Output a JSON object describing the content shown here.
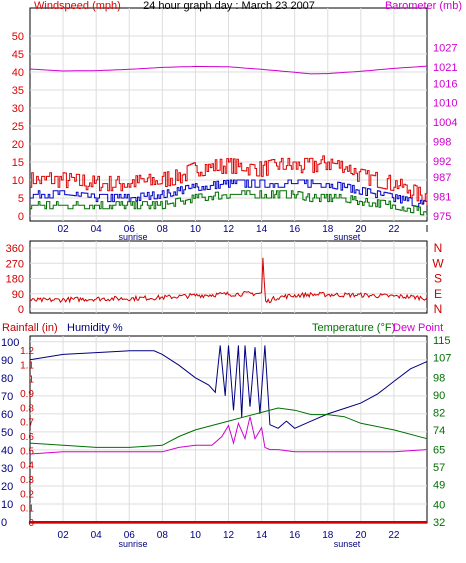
{
  "colors": {
    "wind": "#e00000",
    "wind_avg": "#0000c8",
    "wind_low": "#007000",
    "baro": "#d000d0",
    "dir": "#d00000",
    "humidity": "#000080",
    "temperature": "#007000",
    "dewpoint": "#d000d0",
    "rain": "#d00000",
    "rain_label": "#c00000",
    "humidity_label": "#000080",
    "temp_label": "#007000",
    "grid": "#dddddd",
    "axis": "#000000"
  },
  "chart_data": [
    {
      "type": "line",
      "title": "24 hour graph day : March 23 2007",
      "left_axis_label": "Windspeed (mph)",
      "right_axis_label": "Barometer (mb)",
      "x_ticks": [
        "02",
        "04",
        "06",
        "08",
        "10",
        "12",
        "14",
        "16",
        "18",
        "20",
        "22"
      ],
      "x_tick_hours": [
        2,
        4,
        6,
        8,
        10,
        12,
        14,
        16,
        18,
        20,
        22
      ],
      "x_extra_label": "I",
      "x_range_hours": [
        0,
        24
      ],
      "sunrise_label": "sunrise",
      "sunset_label": "sunset",
      "sunrise_hour": 6.3,
      "sunset_hour": 18.3,
      "left_ticks": [
        "50",
        "45",
        "40",
        "35",
        "30",
        "25",
        "20",
        "15",
        "10",
        "5",
        "0"
      ],
      "left_range": [
        0,
        50
      ],
      "right_ticks": [
        "1027",
        "1021",
        "1016",
        "1010",
        "1004",
        "998",
        "992",
        "987",
        "981",
        "975"
      ],
      "right_range": [
        975,
        1030.6
      ],
      "grid": true,
      "series": [
        {
          "name": "Barometer (mb)",
          "axis": "right",
          "x": [
            0,
            2,
            4,
            6,
            8,
            10,
            12,
            14,
            16,
            17,
            18,
            20,
            22,
            24
          ],
          "values": [
            1020.4,
            1019.8,
            1019.9,
            1020.3,
            1020.9,
            1021.2,
            1021.1,
            1020.3,
            1019.4,
            1018.9,
            1019.0,
            1019.7,
            1020.6,
            1021.3
          ]
        },
        {
          "name": "",
          "axis": "left",
          "x": [
            0,
            2,
            4,
            6,
            8,
            9,
            10,
            12,
            14,
            15,
            16,
            17,
            18,
            19,
            20,
            22,
            23,
            24
          ],
          "values": [
            10,
            10,
            9,
            9,
            10,
            11,
            13,
            14,
            13,
            14,
            14,
            14,
            15,
            14,
            11,
            9,
            7,
            5
          ]
        },
        {
          "name": "",
          "axis": "left",
          "x": [
            0,
            2,
            4,
            6,
            8,
            9,
            10,
            12,
            14,
            15,
            16,
            17,
            18,
            19,
            20,
            22,
            23,
            24
          ],
          "values": [
            6,
            6,
            5,
            5,
            6,
            7,
            8,
            9,
            9,
            9,
            9,
            9,
            9,
            8,
            7,
            5,
            4,
            3
          ]
        },
        {
          "name": "",
          "axis": "left",
          "x": [
            0,
            2,
            4,
            6,
            8,
            9,
            10,
            12,
            14,
            15,
            16,
            17,
            18,
            19,
            20,
            22,
            23,
            24
          ],
          "values": [
            3,
            3,
            3,
            3,
            3,
            4,
            5,
            6,
            6,
            6,
            6,
            5,
            5,
            5,
            4,
            3,
            2,
            1
          ]
        }
      ]
    },
    {
      "type": "line",
      "right_axis_letters": [
        "N",
        "W",
        "S",
        "E",
        "N"
      ],
      "left_ticks": [
        "360",
        "270",
        "180",
        "90",
        "0"
      ],
      "left_range": [
        0,
        360
      ],
      "x_tick_hours": [
        2,
        4,
        6,
        8,
        10,
        12,
        14,
        16,
        18,
        20,
        22
      ],
      "x_range_hours": [
        0,
        24
      ],
      "grid": true,
      "series": [
        {
          "name": "",
          "axis": "left",
          "x": [
            0,
            2,
            4,
            6,
            8,
            10,
            12,
            13,
            14,
            14.1,
            14.2,
            15,
            16,
            17,
            18,
            20,
            22,
            23,
            24
          ],
          "values": [
            50,
            55,
            60,
            62,
            68,
            80,
            88,
            90,
            92,
            355,
            40,
            70,
            80,
            85,
            85,
            82,
            75,
            72,
            65
          ]
        }
      ]
    },
    {
      "type": "line",
      "rain_axis_label": "Rainfall (in)",
      "humidity_axis_label": "Humidity %",
      "temperature_label": "Temperature (°F)",
      "dewpoint_label": "Dew Point",
      "x_ticks": [
        "02",
        "04",
        "06",
        "08",
        "10",
        "12",
        "14",
        "16",
        "18",
        "20",
        "22"
      ],
      "x_tick_hours": [
        2,
        4,
        6,
        8,
        10,
        12,
        14,
        16,
        18,
        20,
        22
      ],
      "x_range_hours": [
        0,
        24
      ],
      "sunrise_label": "sunrise",
      "sunset_label": "sunset",
      "sunrise_hour": 6.3,
      "sunset_hour": 18.3,
      "rain_ticks": [
        "1.2",
        "1.1",
        "1",
        "0.9",
        "0.8",
        "0.7",
        "0.6",
        "0.5",
        "0.4",
        "0.3",
        "0.2",
        "0.1",
        "0"
      ],
      "rain_range": [
        0,
        1.27
      ],
      "humidity_ticks": [
        "100",
        "90",
        "80",
        "70",
        "60",
        "50",
        "40",
        "30",
        "20",
        "10",
        "0"
      ],
      "humidity_range": [
        0,
        101
      ],
      "temp_ticks": [
        "115",
        "107",
        "98",
        "90",
        "82",
        "74",
        "65",
        "57",
        "49",
        "40",
        "32"
      ],
      "temp_range": [
        32,
        115
      ],
      "grid": true,
      "series": [
        {
          "name": "Humidity %",
          "axis": "humidity",
          "x": [
            0,
            2,
            4,
            6,
            7.5,
            8,
            9,
            10,
            10.8,
            11.2,
            11.5,
            11.8,
            12,
            12.3,
            12.6,
            12.8,
            13,
            13.3,
            13.6,
            13.9,
            14.2,
            14.5,
            15,
            15.5,
            16,
            17,
            18,
            19,
            20,
            21,
            22,
            23,
            24
          ],
          "values": [
            90,
            93,
            94,
            95,
            95,
            93,
            87,
            80,
            76,
            72,
            98,
            70,
            98,
            62,
            98,
            58,
            98,
            64,
            97,
            60,
            98,
            54,
            52,
            56,
            52,
            56,
            60,
            63,
            66,
            71,
            78,
            85,
            89
          ]
        },
        {
          "name": "Temperature (°F)",
          "axis": "temp",
          "x": [
            0,
            2,
            4,
            6,
            8,
            9,
            10,
            12,
            13,
            14,
            15,
            16,
            17,
            18,
            19,
            20,
            22,
            24
          ],
          "values": [
            68,
            67,
            66,
            66,
            67,
            71,
            74,
            78,
            80,
            82,
            84,
            83,
            81,
            81,
            80,
            77,
            74,
            70
          ]
        },
        {
          "name": "Dew Point",
          "axis": "temp",
          "x": [
            0,
            2,
            4,
            6,
            8,
            9,
            10,
            11,
            11.6,
            12,
            12.3,
            12.6,
            13,
            13.3,
            13.6,
            14,
            14.2,
            14.5,
            15,
            16,
            18,
            20,
            22,
            24
          ],
          "values": [
            63,
            64,
            64,
            64,
            64,
            66,
            67,
            67,
            71,
            76,
            68,
            77,
            70,
            80,
            70,
            75,
            66,
            65,
            65,
            64,
            64,
            64,
            64,
            65
          ]
        },
        {
          "name": "Rainfall (in)",
          "axis": "rain",
          "x": [
            0,
            24
          ],
          "values": [
            0,
            0
          ]
        }
      ]
    }
  ]
}
